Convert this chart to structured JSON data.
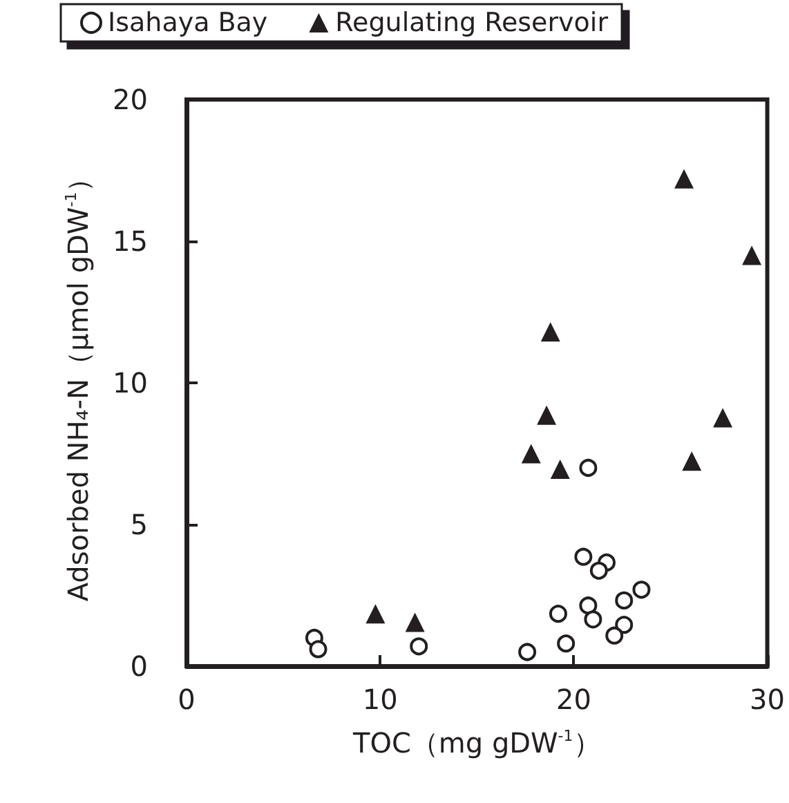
{
  "chart_data": {
    "type": "scatter",
    "xlabel": "TOC（mg gDW$^{-1}$）",
    "ylabel": "Adsorbed NH₄-N（μmol gDW$^{-1}$）",
    "xlim": [
      0,
      30
    ],
    "xticks": [
      0,
      10,
      20,
      30
    ],
    "ylim": [
      0,
      20
    ],
    "yticks": [
      0,
      5,
      10,
      15,
      20
    ],
    "grid": false,
    "legend": "top",
    "series": [
      {
        "name": "Isahaya Bay",
        "color": "#231f20",
        "marker": "circle",
        "x": [
          6.6,
          6.8,
          12.0,
          17.6,
          19.6,
          19.2,
          20.75,
          20.5,
          21.7,
          21.3,
          20.75,
          21.0,
          22.6,
          23.5,
          22.6,
          22.1
        ],
        "values": [
          1.0,
          0.6,
          0.7,
          0.5,
          0.8,
          1.85,
          7.0,
          3.86,
          3.66,
          3.37,
          2.14,
          1.65,
          2.32,
          2.7,
          1.46,
          1.08
        ]
      },
      {
        "name": "Regulating Reservoir",
        "color": "#231f20",
        "marker": "triangle",
        "x": [
          9.76,
          11.8,
          17.8,
          19.3,
          26.1,
          25.7,
          29.2,
          18.8,
          18.6,
          27.7
        ],
        "values": [
          1.85,
          1.55,
          7.5,
          6.95,
          7.24,
          17.2,
          14.5,
          11.8,
          8.86,
          8.77
        ]
      }
    ]
  }
}
